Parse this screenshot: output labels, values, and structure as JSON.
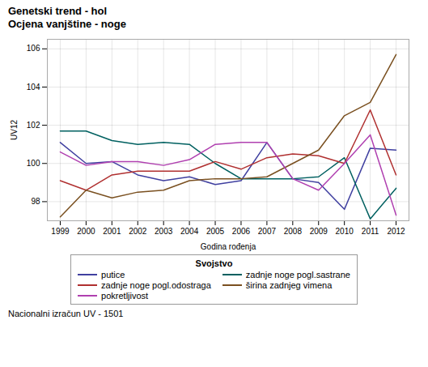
{
  "chart_data": {
    "type": "line",
    "title": "Genetski trend - hol",
    "subtitle": "Ocjena vanjštine - noge",
    "xlabel": "Godina rođenja",
    "ylabel": "UV12",
    "caption": "Nacionalni izračun UV - 1501",
    "legend_title": "Svojstvo",
    "legend": "bottom",
    "grid": true,
    "x": [
      1999,
      2000,
      2001,
      2002,
      2003,
      2004,
      2005,
      2006,
      2007,
      2008,
      2009,
      2010,
      2011,
      2012
    ],
    "series": [
      {
        "name": "putice",
        "color": "#4040a0",
        "values": [
          101.1,
          100.0,
          100.1,
          99.4,
          99.1,
          99.3,
          98.9,
          99.1,
          101.1,
          99.2,
          99.0,
          97.6,
          100.8,
          100.7
        ]
      },
      {
        "name": "zadnje noge pogl.sastrane",
        "color": "#006060",
        "values": [
          101.7,
          101.7,
          101.2,
          101.0,
          101.1,
          101.0,
          100.0,
          99.2,
          99.2,
          99.2,
          99.3,
          100.3,
          97.1,
          98.7
        ]
      },
      {
        "name": "zadnje noge pogl.odostraga",
        "color": "#b03030",
        "values": [
          99.1,
          98.6,
          99.4,
          99.6,
          99.6,
          99.6,
          100.1,
          99.7,
          100.3,
          100.5,
          100.4,
          100.0,
          102.8,
          99.4
        ]
      },
      {
        "name": "širina zadnjeg vimena",
        "color": "#7a5020",
        "values": [
          97.2,
          98.6,
          98.2,
          98.5,
          98.6,
          99.1,
          99.2,
          99.2,
          99.3,
          100.0,
          100.7,
          102.5,
          103.2,
          105.7
        ]
      },
      {
        "name": "pokretljivost",
        "color": "#b040b0",
        "values": [
          100.6,
          99.9,
          100.1,
          100.1,
          99.9,
          100.2,
          101.0,
          101.1,
          101.1,
          99.2,
          98.6,
          100.0,
          101.5,
          97.3
        ]
      }
    ],
    "xlim": [
      1998.5,
      2012.5
    ],
    "xticks": [
      1999,
      2000,
      2001,
      2002,
      2003,
      2004,
      2005,
      2006,
      2007,
      2008,
      2009,
      2010,
      2011,
      2012
    ],
    "ylim": [
      97.0,
      106.5
    ],
    "yticks": [
      98,
      100,
      102,
      104,
      106
    ]
  }
}
